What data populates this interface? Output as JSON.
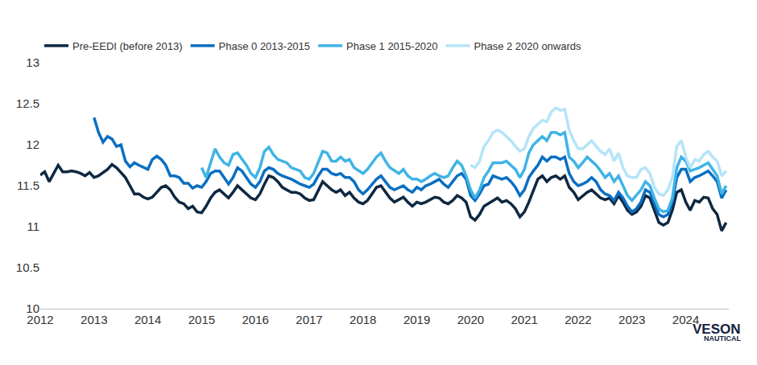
{
  "chart_data": {
    "type": "line",
    "x": [
      2012,
      2012.083,
      2012.167,
      2012.25,
      2012.333,
      2012.417,
      2012.5,
      2012.583,
      2012.667,
      2012.75,
      2012.833,
      2012.917,
      2013,
      2013.083,
      2013.167,
      2013.25,
      2013.333,
      2013.417,
      2013.5,
      2013.583,
      2013.667,
      2013.75,
      2013.833,
      2013.917,
      2014,
      2014.083,
      2014.167,
      2014.25,
      2014.333,
      2014.417,
      2014.5,
      2014.583,
      2014.667,
      2014.75,
      2014.833,
      2014.917,
      2015,
      2015.083,
      2015.167,
      2015.25,
      2015.333,
      2015.417,
      2015.5,
      2015.583,
      2015.667,
      2015.75,
      2015.833,
      2015.917,
      2016,
      2016.083,
      2016.167,
      2016.25,
      2016.333,
      2016.417,
      2016.5,
      2016.583,
      2016.667,
      2016.75,
      2016.833,
      2016.917,
      2017,
      2017.083,
      2017.167,
      2017.25,
      2017.333,
      2017.417,
      2017.5,
      2017.583,
      2017.667,
      2017.75,
      2017.833,
      2017.917,
      2018,
      2018.083,
      2018.167,
      2018.25,
      2018.333,
      2018.417,
      2018.5,
      2018.583,
      2018.667,
      2018.75,
      2018.833,
      2018.917,
      2019,
      2019.083,
      2019.167,
      2019.25,
      2019.333,
      2019.417,
      2019.5,
      2019.583,
      2019.667,
      2019.75,
      2019.833,
      2019.917,
      2020,
      2020.083,
      2020.167,
      2020.25,
      2020.333,
      2020.417,
      2020.5,
      2020.583,
      2020.667,
      2020.75,
      2020.833,
      2020.917,
      2021,
      2021.083,
      2021.167,
      2021.25,
      2021.333,
      2021.417,
      2021.5,
      2021.583,
      2021.667,
      2021.75,
      2021.833,
      2021.917,
      2022,
      2022.083,
      2022.167,
      2022.25,
      2022.333,
      2022.417,
      2022.5,
      2022.583,
      2022.667,
      2022.75,
      2022.833,
      2022.917,
      2023,
      2023.083,
      2023.167,
      2023.25,
      2023.333,
      2023.417,
      2023.5,
      2023.583,
      2023.667,
      2023.75,
      2023.833,
      2023.917,
      2024,
      2024.083,
      2024.167,
      2024.25,
      2024.333,
      2024.417,
      2024.5,
      2024.583,
      2024.667,
      2024.75
    ],
    "series": [
      {
        "name": "Pre-EEDI (before 2013)",
        "color": "#0e2841",
        "values": [
          11.63,
          11.67,
          11.55,
          11.65,
          11.75,
          11.67,
          11.67,
          11.68,
          11.67,
          11.65,
          11.62,
          11.66,
          11.6,
          11.62,
          11.66,
          11.7,
          11.76,
          11.72,
          11.66,
          11.6,
          11.5,
          11.4,
          11.4,
          11.36,
          11.34,
          11.36,
          11.42,
          11.48,
          11.5,
          11.45,
          11.36,
          11.3,
          11.28,
          11.22,
          11.25,
          11.18,
          11.17,
          11.25,
          11.35,
          11.42,
          11.45,
          11.4,
          11.35,
          11.42,
          11.5,
          11.45,
          11.4,
          11.35,
          11.33,
          11.4,
          11.52,
          11.62,
          11.6,
          11.55,
          11.48,
          11.45,
          11.42,
          11.42,
          11.4,
          11.35,
          11.32,
          11.33,
          11.45,
          11.55,
          11.5,
          11.45,
          11.42,
          11.45,
          11.38,
          11.42,
          11.35,
          11.3,
          11.28,
          11.32,
          11.4,
          11.48,
          11.5,
          11.42,
          11.35,
          11.3,
          11.33,
          11.36,
          11.3,
          11.25,
          11.3,
          11.28,
          11.3,
          11.33,
          11.36,
          11.35,
          11.3,
          11.28,
          11.32,
          11.38,
          11.35,
          11.3,
          11.12,
          11.08,
          11.15,
          11.25,
          11.28,
          11.32,
          11.35,
          11.3,
          11.32,
          11.28,
          11.22,
          11.12,
          11.18,
          11.3,
          11.45,
          11.58,
          11.62,
          11.55,
          11.6,
          11.62,
          11.58,
          11.62,
          11.48,
          11.42,
          11.33,
          11.38,
          11.42,
          11.45,
          11.4,
          11.35,
          11.33,
          11.35,
          11.28,
          11.38,
          11.3,
          11.2,
          11.15,
          11.18,
          11.25,
          11.38,
          11.35,
          11.2,
          11.05,
          11.02,
          11.05,
          11.2,
          11.42,
          11.45,
          11.3,
          11.2,
          11.32,
          11.3,
          11.36,
          11.35,
          11.22,
          11.15,
          10.95,
          11.05
        ]
      },
      {
        "name": "Phase 0 2013-2015",
        "color": "#0a6fc2",
        "values": [
          null,
          null,
          null,
          null,
          null,
          null,
          null,
          null,
          null,
          null,
          null,
          null,
          12.33,
          12.15,
          12.03,
          12.1,
          12.07,
          11.98,
          12.0,
          11.8,
          11.73,
          11.78,
          11.75,
          11.72,
          11.7,
          11.82,
          11.86,
          11.82,
          11.75,
          11.62,
          11.62,
          11.6,
          11.53,
          11.53,
          11.47,
          11.5,
          11.48,
          11.55,
          11.65,
          11.68,
          11.68,
          11.6,
          11.52,
          11.6,
          11.72,
          11.68,
          11.6,
          11.52,
          11.48,
          11.55,
          11.68,
          11.72,
          11.7,
          11.65,
          11.62,
          11.6,
          11.58,
          11.55,
          11.52,
          11.5,
          11.48,
          11.52,
          11.62,
          11.7,
          11.7,
          11.65,
          11.63,
          11.65,
          11.6,
          11.6,
          11.55,
          11.45,
          11.4,
          11.45,
          11.52,
          11.58,
          11.62,
          11.55,
          11.48,
          11.45,
          11.48,
          11.5,
          11.45,
          11.42,
          11.48,
          11.45,
          11.5,
          11.52,
          11.55,
          11.58,
          11.52,
          11.48,
          11.55,
          11.62,
          11.65,
          11.58,
          11.38,
          11.32,
          11.4,
          11.5,
          11.52,
          11.62,
          11.6,
          11.58,
          11.6,
          11.55,
          11.48,
          11.38,
          11.45,
          11.6,
          11.68,
          11.75,
          11.85,
          11.8,
          11.85,
          11.85,
          11.82,
          11.85,
          11.65,
          11.55,
          11.5,
          11.52,
          11.55,
          11.6,
          11.55,
          11.45,
          11.4,
          11.38,
          11.32,
          11.42,
          11.35,
          11.25,
          11.18,
          11.22,
          11.3,
          11.45,
          11.42,
          11.28,
          11.15,
          11.12,
          11.15,
          11.3,
          11.6,
          11.7,
          11.7,
          11.55,
          11.6,
          11.62,
          11.65,
          11.68,
          11.62,
          11.55,
          11.35,
          11.45
        ]
      },
      {
        "name": "Phase 1 2015-2020",
        "color": "#3fb4e5",
        "values": [
          null,
          null,
          null,
          null,
          null,
          null,
          null,
          null,
          null,
          null,
          null,
          null,
          null,
          null,
          null,
          null,
          null,
          null,
          null,
          null,
          null,
          null,
          null,
          null,
          null,
          null,
          null,
          null,
          null,
          null,
          null,
          null,
          null,
          null,
          null,
          null,
          11.72,
          11.6,
          11.78,
          11.95,
          11.85,
          11.78,
          11.75,
          11.88,
          11.9,
          11.82,
          11.75,
          11.65,
          11.6,
          11.72,
          11.92,
          11.97,
          11.88,
          11.82,
          11.8,
          11.78,
          11.72,
          11.7,
          11.68,
          11.6,
          11.58,
          11.65,
          11.78,
          11.92,
          11.9,
          11.8,
          11.8,
          11.85,
          11.8,
          11.82,
          11.72,
          11.68,
          11.65,
          11.7,
          11.78,
          11.85,
          11.9,
          11.8,
          11.72,
          11.68,
          11.65,
          11.7,
          11.62,
          11.58,
          11.58,
          11.55,
          11.58,
          11.62,
          11.65,
          11.62,
          11.6,
          11.62,
          11.72,
          11.8,
          11.75,
          11.62,
          11.45,
          11.35,
          11.45,
          11.6,
          11.68,
          11.78,
          11.78,
          11.78,
          11.8,
          11.75,
          11.7,
          11.6,
          11.7,
          11.9,
          12.0,
          12.05,
          12.1,
          12.05,
          12.15,
          12.15,
          12.12,
          12.15,
          11.85,
          11.8,
          11.72,
          11.78,
          11.85,
          11.8,
          11.75,
          11.68,
          11.6,
          11.65,
          11.55,
          11.62,
          11.5,
          11.38,
          11.32,
          11.38,
          11.45,
          11.55,
          11.5,
          11.35,
          11.22,
          11.18,
          11.2,
          11.35,
          11.72,
          11.85,
          11.8,
          11.68,
          11.7,
          11.72,
          11.75,
          11.78,
          11.7,
          11.62,
          11.4,
          11.5
        ]
      },
      {
        "name": "Phase 2 2020 onwards",
        "color": "#b5e4f8",
        "values": [
          null,
          null,
          null,
          null,
          null,
          null,
          null,
          null,
          null,
          null,
          null,
          null,
          null,
          null,
          null,
          null,
          null,
          null,
          null,
          null,
          null,
          null,
          null,
          null,
          null,
          null,
          null,
          null,
          null,
          null,
          null,
          null,
          null,
          null,
          null,
          null,
          null,
          null,
          null,
          null,
          null,
          null,
          null,
          null,
          null,
          null,
          null,
          null,
          null,
          null,
          null,
          null,
          null,
          null,
          null,
          null,
          null,
          null,
          null,
          null,
          null,
          null,
          null,
          null,
          null,
          null,
          null,
          null,
          null,
          null,
          null,
          null,
          null,
          null,
          null,
          null,
          null,
          null,
          null,
          null,
          null,
          null,
          null,
          null,
          null,
          null,
          null,
          null,
          null,
          null,
          null,
          null,
          null,
          null,
          null,
          null,
          11.75,
          11.72,
          11.8,
          11.98,
          12.05,
          12.15,
          12.18,
          12.15,
          12.1,
          12.05,
          11.98,
          11.92,
          11.95,
          12.1,
          12.2,
          12.25,
          12.3,
          12.28,
          12.4,
          12.45,
          12.42,
          12.43,
          12.18,
          12.05,
          11.95,
          11.95,
          12.0,
          12.05,
          11.98,
          11.92,
          11.88,
          11.95,
          11.8,
          11.9,
          11.72,
          11.62,
          11.6,
          11.6,
          11.7,
          11.72,
          11.65,
          11.48,
          11.4,
          11.38,
          11.45,
          11.6,
          11.98,
          12.05,
          11.85,
          11.72,
          11.82,
          11.8,
          11.88,
          11.92,
          11.85,
          11.8,
          11.62,
          11.68
        ]
      }
    ],
    "xlim": [
      2012,
      2024.8
    ],
    "xticks": [
      2012,
      2013,
      2014,
      2015,
      2016,
      2017,
      2018,
      2019,
      2020,
      2021,
      2022,
      2023,
      2024
    ],
    "ylim": [
      10,
      13
    ],
    "yticks": [
      10,
      10.5,
      11,
      11.5,
      12,
      12.5,
      13
    ],
    "grid": false,
    "legend": "top",
    "annotations": [
      {
        "text": "VESON"
      },
      {
        "text": "NAUTICAL"
      }
    ]
  }
}
